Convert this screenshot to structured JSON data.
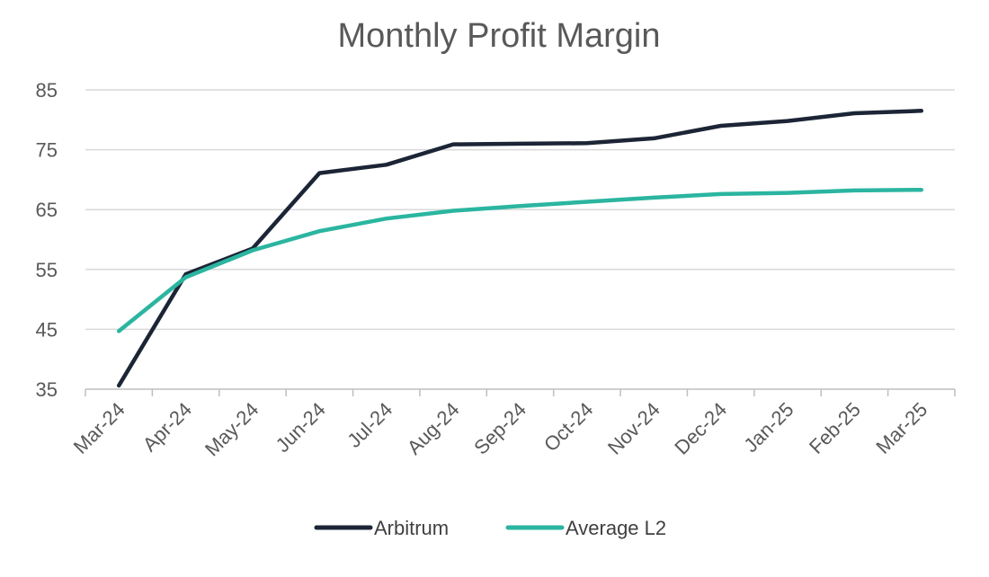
{
  "chart_data": {
    "type": "line",
    "title": "Monthly Profit Margin",
    "xlabel": "",
    "ylabel": "",
    "categories": [
      "Mar-24",
      "Apr-24",
      "May-24",
      "Jun-24",
      "Jul-24",
      "Aug-24",
      "Sep-24",
      "Oct-24",
      "Nov-24",
      "Dec-24",
      "Jan-25",
      "Feb-25",
      "Mar-25"
    ],
    "ylim": [
      35,
      85
    ],
    "yticks": [
      35,
      45,
      55,
      65,
      75,
      85
    ],
    "grid": true,
    "legend_position": "bottom",
    "series": [
      {
        "name": "Arbitrum",
        "color": "#1c2536",
        "values": [
          35.6,
          54.2,
          58.5,
          71.1,
          72.5,
          75.9,
          76.0,
          76.1,
          76.9,
          79.0,
          79.8,
          81.1,
          81.5
        ]
      },
      {
        "name": "Average L2",
        "color": "#2bb5a0",
        "values": [
          44.7,
          53.7,
          58.2,
          61.4,
          63.5,
          64.8,
          65.6,
          66.3,
          67.0,
          67.6,
          67.8,
          68.2,
          68.3
        ]
      }
    ]
  }
}
